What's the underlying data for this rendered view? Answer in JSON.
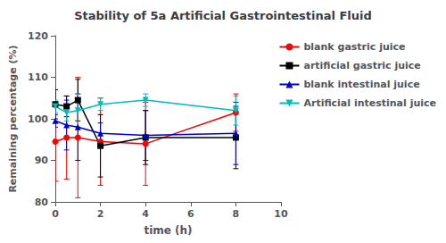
{
  "chart_data": {
    "type": "line",
    "title": "Stability of 5a Artificial Gastrointestinal Fluid",
    "xlabel": "time (h)",
    "ylabel": "Remaining percentage (%)",
    "xlim": [
      0,
      10
    ],
    "ylim": [
      80,
      120
    ],
    "xticks": [
      0,
      2,
      4,
      6,
      8,
      10
    ],
    "yticks": [
      80,
      90,
      100,
      110,
      120
    ],
    "grid": false,
    "legend": "right",
    "x": [
      0.0,
      0.5,
      1.0,
      2.0,
      4.0,
      8.0
    ],
    "series": [
      {
        "name": "blank gastric juice",
        "color": "#ff0000",
        "marker": "circle",
        "values": [
          94.5,
          95.5,
          95.5,
          94.5,
          94.0,
          101.5
        ],
        "yerr": [
          9.5,
          10.0,
          14.5,
          10.5,
          10.0,
          4.5
        ]
      },
      {
        "name": "artificial gastric juice",
        "color": "#000000",
        "marker": "square",
        "values": [
          103.5,
          103.0,
          104.5,
          93.5,
          95.5,
          95.5
        ],
        "yerr": [
          3.5,
          2.5,
          5.0,
          7.5,
          6.5,
          7.5
        ]
      },
      {
        "name": "blank intestinal juice",
        "color": "#0000cc",
        "marker": "triangle_up",
        "values": [
          99.5,
          98.5,
          98.0,
          96.5,
          96.0,
          96.5
        ],
        "yerr": [
          1.5,
          6.0,
          8.0,
          2.5,
          6.0,
          7.5
        ]
      },
      {
        "name": "Artificial intestinal juice",
        "color": "#00bbbb",
        "marker": "triangle_down",
        "values": [
          103.0,
          101.5,
          102.0,
          103.5,
          104.5,
          102.0
        ],
        "yerr": [
          1.5,
          2.0,
          4.0,
          1.5,
          1.5,
          3.5
        ]
      }
    ]
  }
}
